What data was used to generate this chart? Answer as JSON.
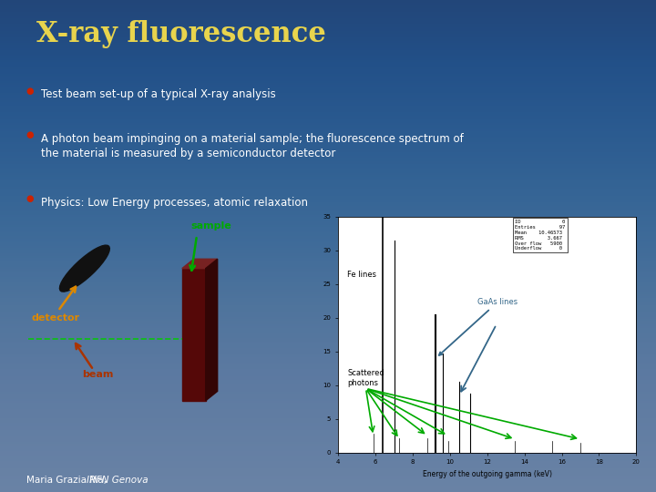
{
  "title": "X-ray fluorescence",
  "title_color": "#e8d44d",
  "bg_color": "#2e5080",
  "bullet_color": "#cc2200",
  "bullet_text_color": "#ffffff",
  "bullet_points": [
    "Test beam set-up of a typical X-ray analysis",
    "A photon beam impinging on a material sample; the fluorescence spectrum of\nthe material is measured by a semiconductor detector",
    "Physics: Low Energy processes, atomic relaxation"
  ],
  "footer_text": "Maria Grazia Pia, ",
  "footer_italic": "INFN Genova",
  "footer_color": "#ffffff",
  "bg_gradient_top": "#1a3a5c",
  "bg_gradient_bottom": "#3a6090"
}
